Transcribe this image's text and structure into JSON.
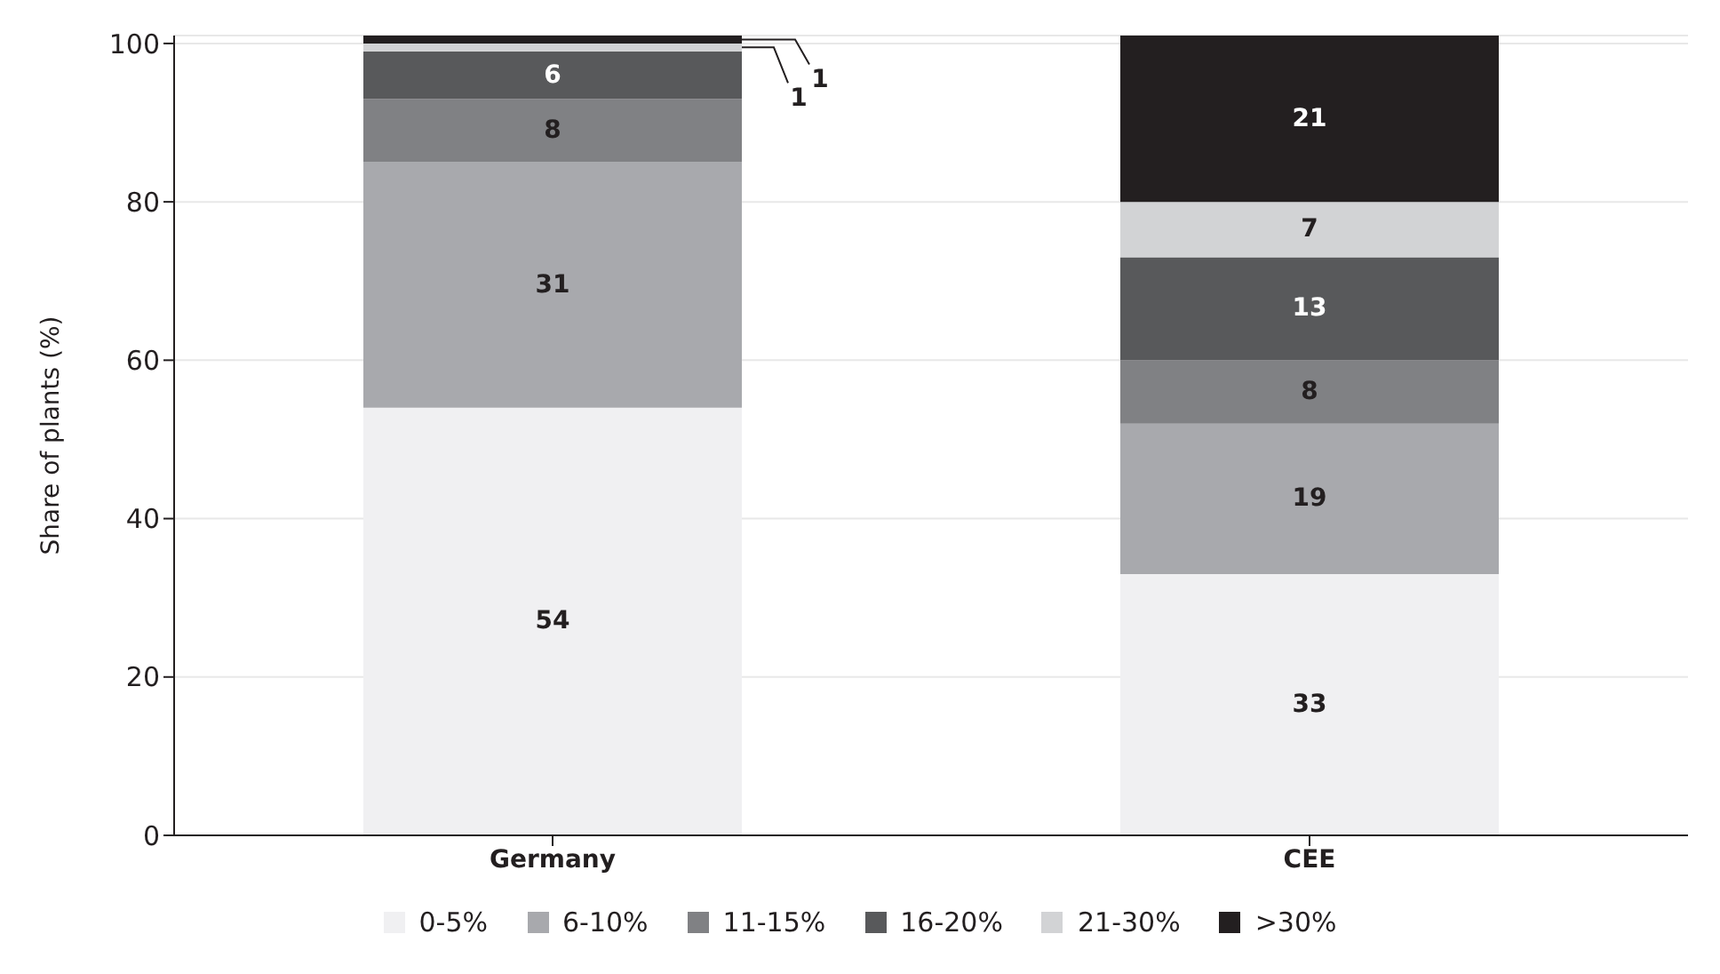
{
  "chart_data": {
    "type": "bar",
    "stacked": true,
    "ylabel": "Share of plants (%)",
    "categories": [
      "Germany",
      "CEE"
    ],
    "series": [
      {
        "name": "0-5%",
        "color": "#f0f0f2",
        "values": [
          54,
          33
        ]
      },
      {
        "name": "6-10%",
        "color": "#a8a9ad",
        "values": [
          31,
          19
        ]
      },
      {
        "name": "11-15%",
        "color": "#808184",
        "values": [
          8,
          8
        ]
      },
      {
        "name": "16-20%",
        "color": "#58595b",
        "values": [
          6,
          13
        ]
      },
      {
        "name": "21-30%",
        "color": "#d2d3d5",
        "values": [
          1,
          7
        ]
      },
      {
        "name": ">30%",
        "color": "#231f20",
        "values": [
          1,
          21
        ]
      }
    ],
    "ylim": [
      0,
      101
    ],
    "yticks": [
      0,
      20,
      40,
      60,
      80,
      100
    ],
    "grid": "y",
    "legend": "bottom",
    "data_labels": true
  }
}
